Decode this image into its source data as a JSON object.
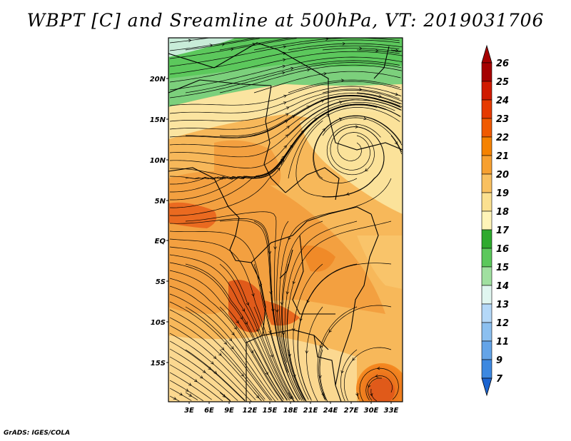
{
  "title": "WBPT [C] and Sreamline at 500hPa, VT: 2019031706",
  "credit": "GrADS: IGES/COLA",
  "map": {
    "lat_labels": [
      "20N",
      "15N",
      "10N",
      "5N",
      "EQ",
      "5S",
      "10S",
      "15S"
    ],
    "lon_labels": [
      "3E",
      "6E",
      "9E",
      "12E",
      "15E",
      "18E",
      "21E",
      "24E",
      "27E",
      "30E",
      "33E"
    ],
    "extent": {
      "lon": [
        0,
        34.5
      ],
      "lat": [
        -20,
        24.5
      ]
    }
  },
  "colorbar": {
    "labels": [
      "26",
      "25",
      "24",
      "23",
      "22",
      "21",
      "20",
      "19",
      "18",
      "17",
      "16",
      "15",
      "14",
      "13",
      "12",
      "11",
      "9",
      "7"
    ],
    "colors": [
      "#a50000",
      "#d01a00",
      "#e63a00",
      "#f05a00",
      "#f58200",
      "#f7a030",
      "#f9c060",
      "#fbe090",
      "#fff4b8",
      "#2eaa2e",
      "#5cc85c",
      "#a0e0a0",
      "#e0f6f0",
      "#b4d8f8",
      "#8cc0f0",
      "#64a4e8",
      "#3c88e0",
      "#1c64d0"
    ],
    "top_arrow_color": "#a50000",
    "bottom_arrow_color": "#1c64d0"
  }
}
